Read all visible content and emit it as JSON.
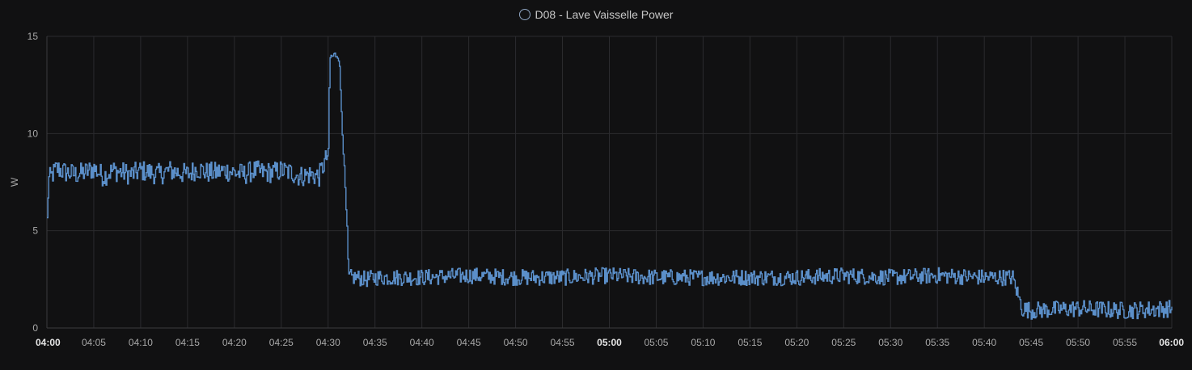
{
  "chart_data": {
    "type": "line",
    "legend": {
      "label": "D08 - Lave Vaisselle Power",
      "placement": "top-center"
    },
    "ylabel": "W",
    "ylim": [
      0,
      15
    ],
    "yticks": [
      "0",
      "5",
      "10",
      "15"
    ],
    "xlim_minutes": [
      0,
      120
    ],
    "xticks": [
      "04:00",
      "04:05",
      "04:10",
      "04:15",
      "04:20",
      "04:25",
      "04:30",
      "04:35",
      "04:40",
      "04:45",
      "04:50",
      "04:55",
      "05:00",
      "05:05",
      "05:10",
      "05:15",
      "05:20",
      "05:25",
      "05:30",
      "05:35",
      "05:40",
      "05:45",
      "05:50",
      "05:55",
      "06:00"
    ],
    "xticks_bold": [
      "04:00",
      "05:00",
      "06:00"
    ],
    "grid": true,
    "series": [
      {
        "name": "D08 - Lave Vaisselle Power",
        "color": "#5b8fc9",
        "points": [
          [
            "04:00",
            5.5
          ],
          [
            "04:00",
            7.6
          ],
          [
            "04:01",
            8.2
          ],
          [
            "04:02",
            8.0
          ],
          [
            "04:03",
            7.9
          ],
          [
            "04:04",
            8.0
          ],
          [
            "04:05",
            8.2
          ],
          [
            "04:06",
            7.8
          ],
          [
            "04:07",
            8.1
          ],
          [
            "04:08",
            8.0
          ],
          [
            "04:09",
            7.9
          ],
          [
            "04:10",
            8.1
          ],
          [
            "04:11",
            8.0
          ],
          [
            "04:12",
            7.9
          ],
          [
            "04:13",
            8.1
          ],
          [
            "04:14",
            8.0
          ],
          [
            "04:15",
            7.9
          ],
          [
            "04:16",
            8.2
          ],
          [
            "04:17",
            8.0
          ],
          [
            "04:18",
            8.0
          ],
          [
            "04:19",
            8.1
          ],
          [
            "04:20",
            8.0
          ],
          [
            "04:21",
            7.9
          ],
          [
            "04:22",
            8.1
          ],
          [
            "04:23",
            8.0
          ],
          [
            "04:24",
            8.0
          ],
          [
            "04:25",
            8.1
          ],
          [
            "04:26",
            8.0
          ],
          [
            "04:27",
            7.8
          ],
          [
            "04:28",
            7.9
          ],
          [
            "04:29",
            7.8
          ],
          [
            "04:30",
            9.0
          ],
          [
            "04:30",
            13.9
          ],
          [
            "04:31",
            14.1
          ],
          [
            "04:31",
            13.8
          ],
          [
            "04:32",
            5.0
          ],
          [
            "04:32",
            2.6
          ],
          [
            "04:33",
            2.6
          ],
          [
            "04:34",
            2.5
          ],
          [
            "04:35",
            2.6
          ],
          [
            "04:40",
            2.6
          ],
          [
            "04:45",
            2.7
          ],
          [
            "04:50",
            2.6
          ],
          [
            "04:55",
            2.6
          ],
          [
            "05:00",
            2.7
          ],
          [
            "05:05",
            2.6
          ],
          [
            "05:10",
            2.6
          ],
          [
            "05:15",
            2.6
          ],
          [
            "05:20",
            2.6
          ],
          [
            "05:25",
            2.7
          ],
          [
            "05:30",
            2.6
          ],
          [
            "05:35",
            2.7
          ],
          [
            "05:40",
            2.6
          ],
          [
            "05:43",
            2.6
          ],
          [
            "05:44",
            1.0
          ],
          [
            "05:45",
            0.9
          ],
          [
            "05:50",
            1.0
          ],
          [
            "05:55",
            0.9
          ],
          [
            "06:00",
            1.0
          ]
        ]
      }
    ]
  }
}
